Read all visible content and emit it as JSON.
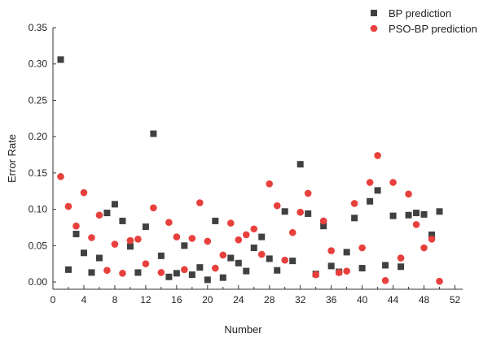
{
  "chart_data": {
    "type": "scatter",
    "title": "",
    "xlabel": "Number",
    "ylabel": "Error Rate",
    "xlim": [
      0,
      53
    ],
    "ylim": [
      -0.01,
      0.35
    ],
    "x_ticks": [
      0,
      4,
      8,
      12,
      16,
      20,
      24,
      28,
      32,
      36,
      40,
      44,
      48,
      52
    ],
    "y_ticks": [
      0.0,
      0.05,
      0.1,
      0.15,
      0.2,
      0.25,
      0.3,
      0.35
    ],
    "grid": false,
    "legend_position": "top-right",
    "series": [
      {
        "name": "BP prediction",
        "marker": "square",
        "color": "#404040",
        "points": [
          [
            1,
            0.306
          ],
          [
            2,
            0.017
          ],
          [
            3,
            0.066
          ],
          [
            4,
            0.04
          ],
          [
            5,
            0.013
          ],
          [
            6,
            0.033
          ],
          [
            7,
            0.095
          ],
          [
            8,
            0.107
          ],
          [
            9,
            0.084
          ],
          [
            10,
            0.049
          ],
          [
            11,
            0.013
          ],
          [
            12,
            0.076
          ],
          [
            13,
            0.204
          ],
          [
            14,
            0.036
          ],
          [
            15,
            0.007
          ],
          [
            16,
            0.012
          ],
          [
            17,
            0.05
          ],
          [
            18,
            0.01
          ],
          [
            19,
            0.02
          ],
          [
            20,
            0.003
          ],
          [
            21,
            0.084
          ],
          [
            22,
            0.006
          ],
          [
            23,
            0.033
          ],
          [
            24,
            0.026
          ],
          [
            25,
            0.015
          ],
          [
            26,
            0.047
          ],
          [
            27,
            0.062
          ],
          [
            28,
            0.032
          ],
          [
            29,
            0.016
          ],
          [
            30,
            0.097
          ],
          [
            31,
            0.029
          ],
          [
            32,
            0.162
          ],
          [
            33,
            0.094
          ],
          [
            34,
            0.011
          ],
          [
            35,
            0.077
          ],
          [
            36,
            0.022
          ],
          [
            37,
            0.014
          ],
          [
            38,
            0.041
          ],
          [
            39,
            0.088
          ],
          [
            40,
            0.019
          ],
          [
            41,
            0.111
          ],
          [
            42,
            0.126
          ],
          [
            43,
            0.023
          ],
          [
            44,
            0.091
          ],
          [
            45,
            0.021
          ],
          [
            46,
            0.092
          ],
          [
            47,
            0.095
          ],
          [
            48,
            0.093
          ],
          [
            49,
            0.065
          ],
          [
            50,
            0.097
          ]
        ]
      },
      {
        "name": "PSO-BP prediction",
        "marker": "circle",
        "color": "#e8403c",
        "points": [
          [
            1,
            0.145
          ],
          [
            2,
            0.104
          ],
          [
            3,
            0.077
          ],
          [
            4,
            0.123
          ],
          [
            5,
            0.061
          ],
          [
            6,
            0.092
          ],
          [
            7,
            0.016
          ],
          [
            8,
            0.052
          ],
          [
            9,
            0.012
          ],
          [
            10,
            0.057
          ],
          [
            11,
            0.059
          ],
          [
            12,
            0.025
          ],
          [
            13,
            0.102
          ],
          [
            14,
            0.013
          ],
          [
            15,
            0.082
          ],
          [
            16,
            0.062
          ],
          [
            17,
            0.017
          ],
          [
            18,
            0.06
          ],
          [
            19,
            0.109
          ],
          [
            20,
            0.056
          ],
          [
            21,
            0.019
          ],
          [
            22,
            0.037
          ],
          [
            23,
            0.081
          ],
          [
            24,
            0.058
          ],
          [
            25,
            0.065
          ],
          [
            26,
            0.073
          ],
          [
            27,
            0.038
          ],
          [
            28,
            0.135
          ],
          [
            29,
            0.105
          ],
          [
            30,
            0.03
          ],
          [
            31,
            0.068
          ],
          [
            32,
            0.096
          ],
          [
            33,
            0.122
          ],
          [
            34,
            0.01
          ],
          [
            35,
            0.084
          ],
          [
            36,
            0.043
          ],
          [
            37,
            0.013
          ],
          [
            38,
            0.015
          ],
          [
            39,
            0.108
          ],
          [
            40,
            0.047
          ],
          [
            41,
            0.137
          ],
          [
            42,
            0.174
          ],
          [
            43,
            0.002
          ],
          [
            44,
            0.137
          ],
          [
            45,
            0.033
          ],
          [
            46,
            0.121
          ],
          [
            47,
            0.079
          ],
          [
            48,
            0.047
          ],
          [
            49,
            0.059
          ],
          [
            50,
            0.001
          ]
        ]
      }
    ]
  }
}
